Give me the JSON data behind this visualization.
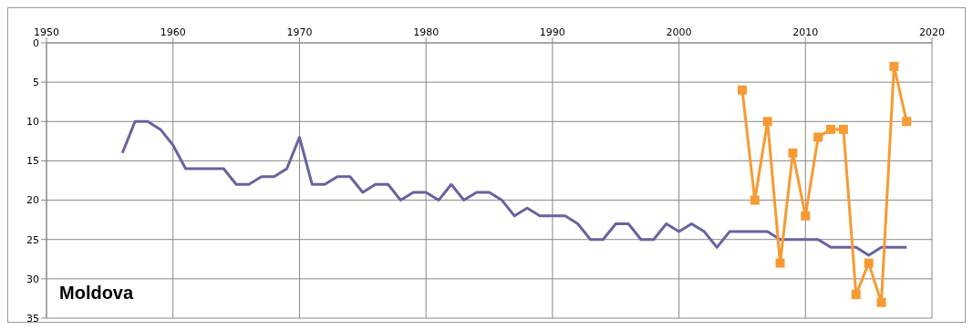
{
  "chart_data": {
    "type": "line",
    "annotations": [
      "Moldova"
    ],
    "xlim": [
      1950,
      2020
    ],
    "xticks": [
      1950,
      1960,
      1970,
      1980,
      1990,
      2000,
      2010,
      2020
    ],
    "ylim": [
      35,
      0
    ],
    "yticks": [
      0,
      5,
      10,
      15,
      20,
      25,
      30,
      35
    ],
    "grid": true,
    "line_style": "solid",
    "series": [
      {
        "color": "#6563a0",
        "marker": "none",
        "x": [
          1956,
          1957,
          1958,
          1959,
          1960,
          1961,
          1962,
          1963,
          1964,
          1965,
          1966,
          1967,
          1968,
          1969,
          1970,
          1971,
          1972,
          1973,
          1974,
          1975,
          1976,
          1977,
          1978,
          1979,
          1980,
          1981,
          1982,
          1983,
          1984,
          1985,
          1986,
          1987,
          1988,
          1989,
          1990,
          1991,
          1992,
          1993,
          1994,
          1995,
          1996,
          1997,
          1998,
          1999,
          2000,
          2001,
          2002,
          2003,
          2004,
          2005,
          2006,
          2007,
          2008,
          2009,
          2010,
          2011,
          2012,
          2013,
          2014,
          2015,
          2016,
          2017,
          2018
        ],
        "values": [
          14,
          10,
          10,
          11,
          13,
          16,
          16,
          16,
          16,
          18,
          18,
          17,
          17,
          16,
          12,
          18,
          18,
          17,
          17,
          19,
          18,
          18,
          20,
          19,
          19,
          20,
          18,
          20,
          19,
          19,
          20,
          22,
          21,
          22,
          22,
          22,
          23,
          25,
          25,
          23,
          23,
          25,
          25,
          23,
          24,
          23,
          24,
          26,
          24,
          24,
          24,
          24,
          25,
          25,
          25,
          25,
          26,
          26,
          26,
          27,
          26,
          26,
          26
        ]
      },
      {
        "color": "#f79a32",
        "marker": "square",
        "x": [
          2005,
          2006,
          2007,
          2008,
          2009,
          2010,
          2011,
          2012,
          2013,
          2014,
          2015,
          2016,
          2017,
          2018
        ],
        "values": [
          6,
          20,
          10,
          28,
          14,
          22,
          12,
          11,
          11,
          32,
          28,
          33,
          3,
          10
        ]
      }
    ]
  }
}
